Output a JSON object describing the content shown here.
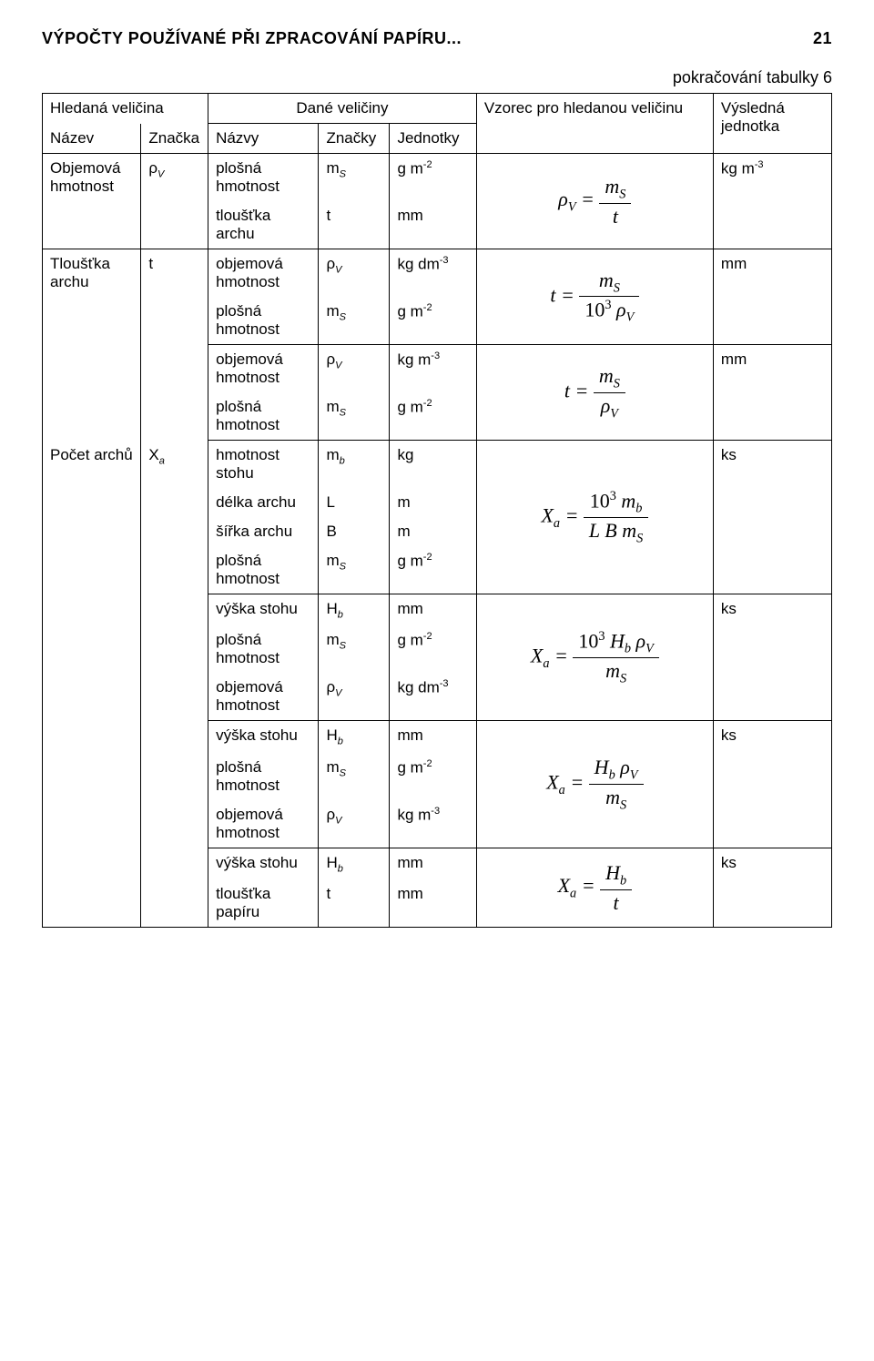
{
  "page": {
    "running_head": "VÝPOČTY POUŽÍVANÉ PŘI ZPRACOVÁNÍ PAPÍRU...",
    "page_number": "21",
    "continuation": "pokračování tabulky 6"
  },
  "header": {
    "sought_qty": "Hledaná veličina",
    "given_qty": "Dané veličiny",
    "formula": "Vzorec pro hledanou veličinu",
    "result_unit": "Výsledná jednotka",
    "name": "Název",
    "symbol": "Značka",
    "names": "Názvy",
    "symbols": "Značky",
    "units": "Jednotky"
  },
  "rows": {
    "r1": {
      "sought_name": "Objemová hmotnost",
      "sought_sym": "ρ",
      "sought_sub": "V",
      "g1_name": "plošná hmotnost",
      "g1_sym": "m",
      "g1_sub": "S",
      "g1_unit": "g m",
      "g1_exp": "-2",
      "g2_name": "tloušťka archu",
      "g2_sym": "t",
      "g2_unit": "mm",
      "res_unit": "kg m",
      "res_exp": "-3"
    },
    "r2": {
      "sought_name": "Tloušťka archu",
      "sought_sym": "t",
      "g1_name": "objemová hmotnost",
      "g1_sym": "ρ",
      "g1_sub": "V",
      "g1_unit": "kg dm",
      "g1_exp": "-3",
      "g2_name": "plošná hmotnost",
      "g2_sym": "m",
      "g2_sub": "S",
      "g2_unit": "g m",
      "g2_exp": "-2",
      "res_unit": "mm"
    },
    "r3": {
      "g1_name": "objemová hmotnost",
      "g1_sym": "ρ",
      "g1_sub": "V",
      "g1_unit": "kg m",
      "g1_exp": "-3",
      "g2_name": "plošná hmotnost",
      "g2_sym": "m",
      "g2_sub": "S",
      "g2_unit": "g m",
      "g2_exp": "-2",
      "res_unit": "mm"
    },
    "r4": {
      "sought_name": "Počet archů",
      "sought_sym": "X",
      "sought_sub": "a",
      "g1_name": "hmotnost stohu",
      "g1_sym": "m",
      "g1_sub": "b",
      "g1_unit": "kg",
      "g2_name": "délka archu",
      "g2_sym": "L",
      "g2_unit": "m",
      "g3_name": "šířka archu",
      "g3_sym": "B",
      "g3_unit": "m",
      "g4_name": "plošná hmotnost",
      "g4_sym": "m",
      "g4_sub": "S",
      "g4_unit": "g m",
      "g4_exp": "-2",
      "res_unit": "ks"
    },
    "r5": {
      "g1_name": "výška stohu",
      "g1_sym": "H",
      "g1_sub": "b",
      "g1_unit": "mm",
      "g2_name": "plošná hmotnost",
      "g2_sym": "m",
      "g2_sub": "S",
      "g2_unit": "g m",
      "g2_exp": "-2",
      "g3_name": "objemová hmotnost",
      "g3_sym": "ρ",
      "g3_sub": "V",
      "g3_unit": "kg dm",
      "g3_exp": "-3",
      "res_unit": "ks"
    },
    "r6": {
      "g1_name": "výška stohu",
      "g1_sym": "H",
      "g1_sub": "b",
      "g1_unit": "mm",
      "g2_name": "plošná hmotnost",
      "g2_sym": "m",
      "g2_sub": "S",
      "g2_unit": "g m",
      "g2_exp": "-2",
      "g3_name": "objemová hmotnost",
      "g3_sym": "ρ",
      "g3_sub": "V",
      "g3_unit": "kg m",
      "g3_exp": "-3",
      "res_unit": "ks"
    },
    "r7": {
      "g1_name": "výška stohu",
      "g1_sym": "H",
      "g1_sub": "b",
      "g1_unit": "mm",
      "g2_name": "tloušťka papíru",
      "g2_sym": "t",
      "g2_unit": "mm",
      "res_unit": "ks"
    }
  },
  "f": {
    "rho": "ρ",
    "m": "m",
    "t": "t",
    "X": "X",
    "H": "H",
    "L": "L",
    "B": "B",
    "V": "V",
    "S": "S",
    "a": "a",
    "b": "b",
    "eq": " = ",
    "ten3": "10",
    "exp3": "3"
  }
}
